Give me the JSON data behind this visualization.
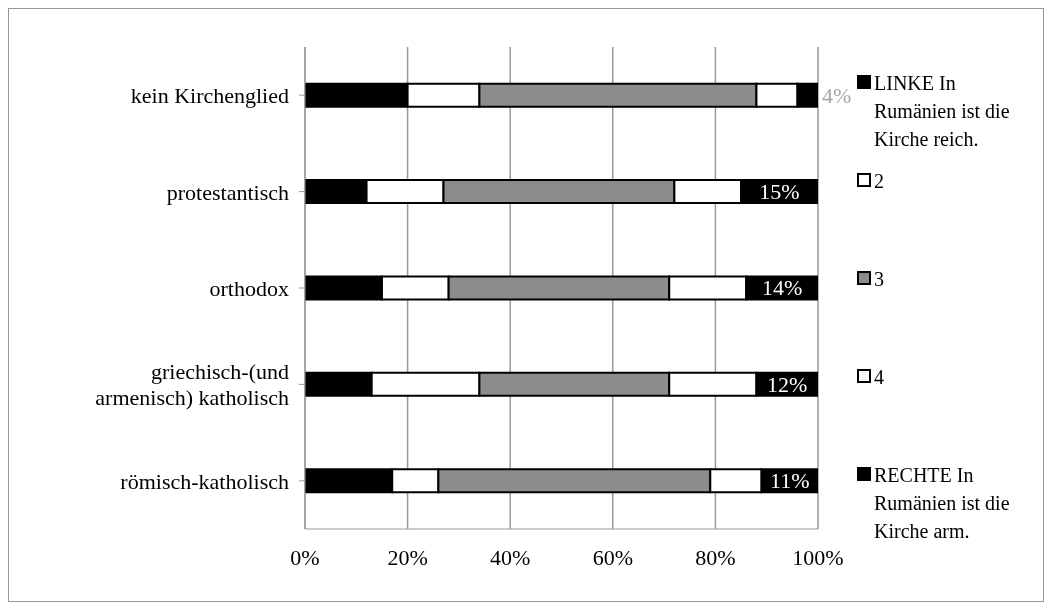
{
  "chart_data": {
    "type": "bar",
    "orientation": "horizontal",
    "stacked": true,
    "categories": [
      "kein Kirchenglied",
      "protestantisch",
      "orthodox",
      "griechisch-(und armenisch) katholisch",
      "römisch-katholisch"
    ],
    "series": [
      {
        "name": "LINKE In Rumänien ist die Kirche reich.",
        "color": "#000000",
        "values": [
          20,
          12,
          15,
          13,
          17
        ]
      },
      {
        "name": "2",
        "color": "#ffffff",
        "values": [
          14,
          15,
          13,
          21,
          9
        ]
      },
      {
        "name": "3",
        "color": "#8c8c8c",
        "values": [
          54,
          45,
          43,
          37,
          53
        ]
      },
      {
        "name": "4",
        "color": "#ffffff",
        "values": [
          8,
          13,
          15,
          17,
          10
        ]
      },
      {
        "name": "RECHTE In Rumänien ist die Kirche arm.",
        "color": "#000000",
        "values": [
          4,
          15,
          14,
          12,
          11
        ],
        "value_labels": [
          "4%",
          "15%",
          "14%",
          "12%",
          "11%"
        ]
      }
    ],
    "xlim": [
      0,
      100
    ],
    "xticks": [
      {
        "value": 0,
        "label": "0%"
      },
      {
        "value": 20,
        "label": "20%"
      },
      {
        "value": 40,
        "label": "40%"
      },
      {
        "value": 60,
        "label": "60%"
      },
      {
        "value": 80,
        "label": "80%"
      },
      {
        "value": 100,
        "label": "100%"
      }
    ],
    "grid": "x",
    "legend": "right"
  }
}
